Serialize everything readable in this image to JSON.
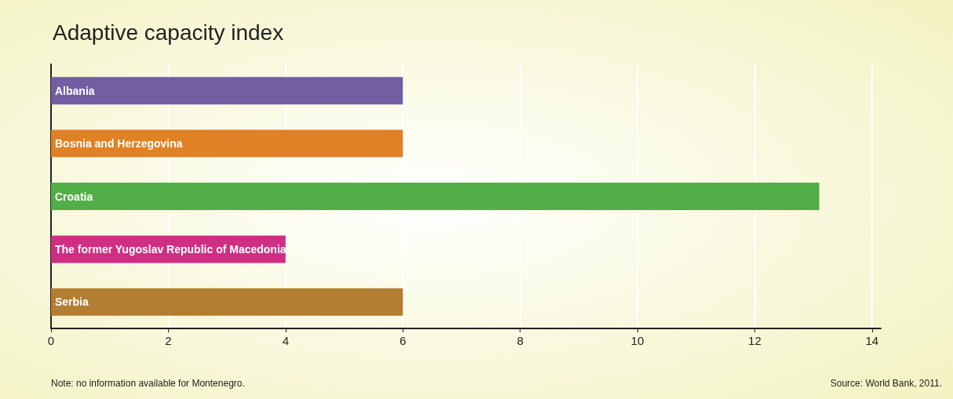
{
  "chart_data": {
    "type": "bar",
    "orientation": "horizontal",
    "title": "Adaptive capacity index",
    "categories": [
      "Albania",
      "Bosnia and Herzegovina",
      "Croatia",
      "The former Yugoslav Republic of Macedonia",
      "Serbia"
    ],
    "values": [
      6,
      6,
      13.1,
      4,
      6
    ],
    "colors": [
      "#725ea3",
      "#e08126",
      "#52ae47",
      "#d12e83",
      "#b37d32"
    ],
    "xlim": [
      0,
      14.15
    ],
    "xticks": [
      0,
      2,
      4,
      6,
      8,
      10,
      12,
      14
    ],
    "grid": "x",
    "annotations": [
      "Note: no information available for Montenegro.",
      "Source: World Bank, 2011."
    ]
  }
}
